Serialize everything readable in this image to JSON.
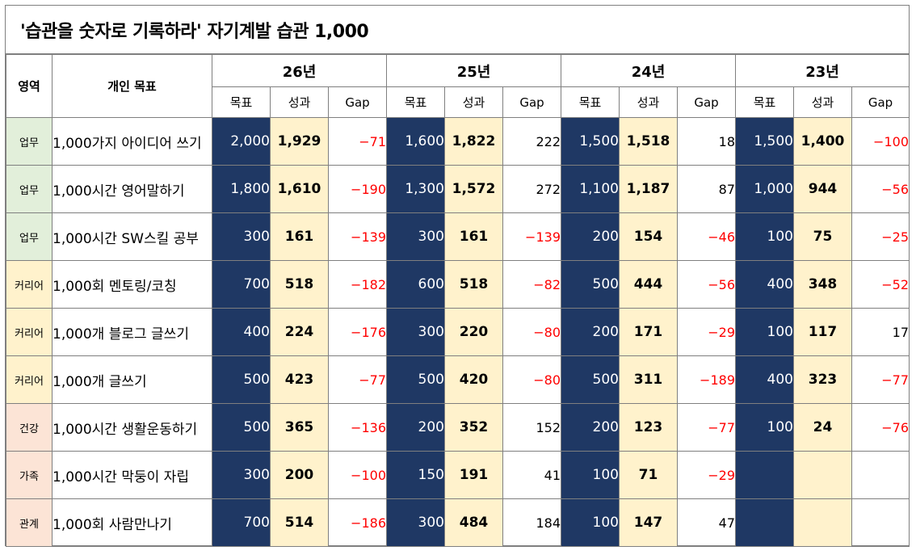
{
  "title": "'습관을 숫자로 기록하라'  자기계발 습관 1,000",
  "header": {
    "area_label": "영역",
    "goal_label": "개인 목표",
    "years": [
      "26년",
      "25년",
      "24년",
      "23년"
    ],
    "sub_labels": [
      "목표",
      "성과",
      "Gap"
    ]
  },
  "rows": [
    {
      "area": "업무",
      "area_type": "work",
      "goal": "1,000가지 아이디어 쓰기",
      "cells": [
        [
          "2,000",
          "1,929",
          "−71"
        ],
        [
          "1,600",
          "1,822",
          "222"
        ],
        [
          "1,500",
          "1,518",
          "18"
        ],
        [
          "1,500",
          "1,400",
          "−100"
        ]
      ]
    },
    {
      "area": "업무",
      "area_type": "work",
      "goal": "1,000시간 영어말하기",
      "cells": [
        [
          "1,800",
          "1,610",
          "−190"
        ],
        [
          "1,300",
          "1,572",
          "272"
        ],
        [
          "1,100",
          "1,187",
          "87"
        ],
        [
          "1,000",
          "944",
          "−56"
        ]
      ]
    },
    {
      "area": "업무",
      "area_type": "work",
      "goal": "1,000시간 SW스킬 공부",
      "cells": [
        [
          "300",
          "161",
          "−139"
        ],
        [
          "300",
          "161",
          "−139"
        ],
        [
          "200",
          "154",
          "−46"
        ],
        [
          "100",
          "75",
          "−25"
        ]
      ]
    },
    {
      "area": "커리어",
      "area_type": "career",
      "goal": "1,000회 멘토링/코칭",
      "cells": [
        [
          "700",
          "518",
          "−182"
        ],
        [
          "600",
          "518",
          "−82"
        ],
        [
          "500",
          "444",
          "−56"
        ],
        [
          "400",
          "348",
          "−52"
        ]
      ]
    },
    {
      "area": "커리어",
      "area_type": "career",
      "goal": "1,000개 블로그 글쓰기",
      "cells": [
        [
          "400",
          "224",
          "−176"
        ],
        [
          "300",
          "220",
          "−80"
        ],
        [
          "200",
          "171",
          "−29"
        ],
        [
          "100",
          "117",
          "17"
        ]
      ]
    },
    {
      "area": "커리어",
      "area_type": "career",
      "goal": "1,000개 글쓰기",
      "cells": [
        [
          "500",
          "423",
          "−77"
        ],
        [
          "500",
          "420",
          "−80"
        ],
        [
          "500",
          "311",
          "−189"
        ],
        [
          "400",
          "323",
          "−77"
        ]
      ]
    },
    {
      "area": "건강",
      "area_type": "health",
      "goal": "1,000시간 생활운동하기",
      "cells": [
        [
          "500",
          "365",
          "−136"
        ],
        [
          "200",
          "352",
          "152"
        ],
        [
          "200",
          "123",
          "−77"
        ],
        [
          "100",
          "24",
          "−76"
        ]
      ]
    },
    {
      "area": "가족",
      "area_type": "family",
      "goal": "1,000시간 막둥이 자립",
      "cells": [
        [
          "300",
          "200",
          "−100"
        ],
        [
          "150",
          "191",
          "41"
        ],
        [
          "100",
          "71",
          "−29"
        ],
        [
          "",
          "",
          ""
        ]
      ]
    },
    {
      "area": "관계",
      "area_type": "relation",
      "goal": "1,000회 사람만나기",
      "cells": [
        [
          "700",
          "514",
          "−186"
        ],
        [
          "300",
          "484",
          "184"
        ],
        [
          "100",
          "147",
          "47"
        ],
        [
          "",
          "",
          ""
        ]
      ]
    }
  ],
  "colors": {
    "target_bg": "#1f3864",
    "result_bg": "#fff2cc",
    "negative_gap": "#ff0000"
  }
}
